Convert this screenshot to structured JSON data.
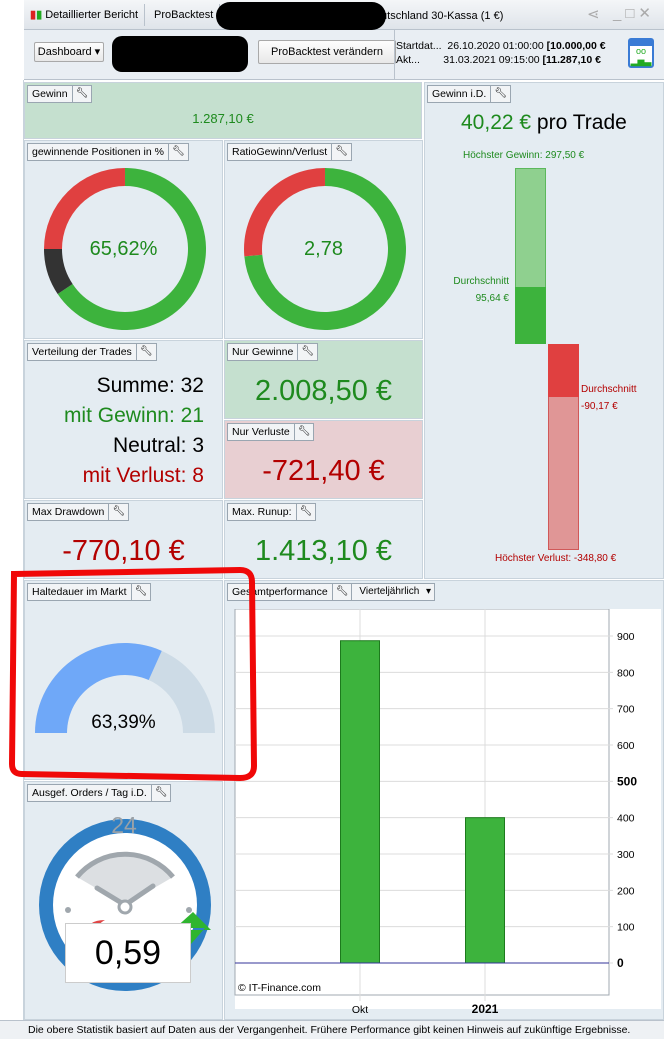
{
  "window": {
    "tabs": [
      "Detaillierter Bericht",
      "ProBacktest"
    ],
    "instrument": "Deutschland 30-Kassa (1 €)"
  },
  "toolbar": {
    "dashboard": "Dashboard",
    "change_button": "ProBacktest verändern",
    "start_label": "Startdat...",
    "start_date": "26.10.2020 01:00:00",
    "start_value": "[10.000,00 €",
    "end_label": "Akt...",
    "end_date": "31.03.2021 09:15:00",
    "end_value": "[11.287,10 €"
  },
  "gewinn": {
    "title": "Gewinn",
    "value": "1.287,10 €"
  },
  "win_pct": {
    "title": "gewinnende Positionen in %",
    "value": "65,62%",
    "win": 21,
    "neutral": 3,
    "loss": 8
  },
  "ratio": {
    "title": "RatioGewinn/Verlust",
    "value": "2,78",
    "ratio": 2.78
  },
  "verteilung": {
    "title": "Verteilung der Trades",
    "summe": "Summe: 32",
    "gewinn": "mit Gewinn: 21",
    "neutral": "Neutral: 3",
    "verlust": "mit Verlust: 8"
  },
  "nur_gewinne": {
    "title": "Nur Gewinne",
    "value": "2.008,50 €"
  },
  "nur_verluste": {
    "title": "Nur Verluste",
    "value": "-721,40 €"
  },
  "drawdown": {
    "title": "Max Drawdown",
    "value": "-770,10 €"
  },
  "runup": {
    "title": "Max. Runup:",
    "value": "1.413,10 €"
  },
  "gewinn_id": {
    "title": "Gewinn i.D.",
    "value": "40,22 €",
    "suffix": "pro Trade",
    "max_gain_label": "Höchster Gewinn: 297,50 €",
    "avg_gain_label": "Durchschnitt",
    "avg_gain": "95,64 €",
    "avg_loss_label": "Durchschnitt",
    "avg_loss": "-90,17 €",
    "max_loss_label": "Höchster Verlust: -348,80 €",
    "max_gain_v": 297.5,
    "avg_gain_v": 95.64,
    "avg_loss_v": 90.17,
    "max_loss_v": 348.8
  },
  "haltedauer": {
    "title": "Haltedauer im Markt",
    "value": "63,39%",
    "fraction": 0.6339
  },
  "orders": {
    "title": "Ausgef. Orders / Tag i.D.",
    "value": "0,59",
    "clock_label": "24"
  },
  "chart_data": {
    "type": "bar",
    "title": "Gesamtperformance",
    "period": "Vierteljährlich",
    "categories": [
      "Okt",
      "2021"
    ],
    "values": [
      887,
      400
    ],
    "ylim": [
      -90,
      1000
    ],
    "yticks": [
      0,
      100,
      200,
      300,
      400,
      500,
      600,
      700,
      800,
      900
    ],
    "ytick_labels": [
      "0",
      "100",
      "200",
      "300",
      "400",
      "500",
      "600",
      "700",
      "800",
      "900"
    ],
    "watermark": "© IT-Finance.com",
    "grid": true
  },
  "footer": "Die obere Statistik basiert auf Daten aus der Vergangenheit. Frühere Performance gibt keinen Hinweis auf zukünftige Ergebnisse.",
  "colors": {
    "green": "#3db33d",
    "red": "#e04040",
    "dark": "#333333",
    "blue": "#6fa8f8"
  }
}
